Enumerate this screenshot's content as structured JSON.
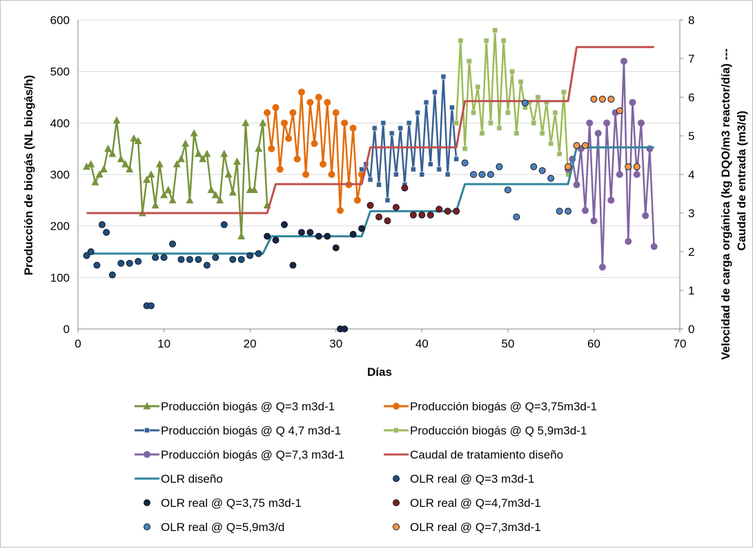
{
  "chart_data": {
    "type": "line",
    "xlabel": "Días",
    "ylabel_left": "Producción de biogás (NL biogás/h)",
    "ylabel_right_line1": "Velocidad de carga orgánica (kg DQO/m3 reactor/día) ---",
    "ylabel_right_line2": "Caudal de entrada (m3/d)",
    "xlim": [
      0,
      70
    ],
    "xticks": [
      "0",
      "10",
      "20",
      "30",
      "40",
      "50",
      "60",
      "70"
    ],
    "ylim_left": [
      0,
      600
    ],
    "yticks_left": [
      "0",
      "100",
      "200",
      "300",
      "400",
      "500",
      "600"
    ],
    "ylim_right": [
      0,
      8
    ],
    "yticks_right": [
      "0",
      "1",
      "2",
      "3",
      "4",
      "5",
      "6",
      "7",
      "8"
    ],
    "grid": "horizontal",
    "legend_position": "bottom",
    "series": [
      {
        "name": "Producción biogás @ Q=3 m3d-1",
        "axis": "left",
        "color": "#77933c",
        "marker": "triangle",
        "line": true,
        "x": [
          1,
          1.5,
          2,
          2.5,
          3,
          3.5,
          4,
          4.5,
          5,
          5.5,
          6,
          6.5,
          7,
          7.5,
          8,
          8.5,
          9,
          9.5,
          10,
          10.5,
          11,
          11.5,
          12,
          12.5,
          13,
          13.5,
          14,
          14.5,
          15,
          15.5,
          16,
          16.5,
          17,
          17.5,
          18,
          18.5,
          19,
          19.5,
          20,
          20.5,
          21,
          21.5,
          22
        ],
        "y": [
          315,
          320,
          285,
          300,
          310,
          350,
          340,
          405,
          330,
          320,
          310,
          370,
          365,
          225,
          290,
          300,
          240,
          320,
          260,
          270,
          250,
          320,
          330,
          360,
          250,
          380,
          340,
          330,
          340,
          270,
          260,
          250,
          340,
          300,
          265,
          325,
          180,
          400,
          270,
          270,
          350,
          400,
          240
        ]
      },
      {
        "name": "Producción biogás @ Q=3,75m3d-1",
        "axis": "left",
        "color": "#e46c0a",
        "marker": "circle",
        "line": true,
        "x": [
          22,
          22.5,
          23,
          23.5,
          24,
          24.5,
          25,
          25.5,
          26,
          26.5,
          27,
          27.5,
          28,
          28.5,
          29,
          29.5,
          30,
          30.5,
          31,
          31.5,
          32,
          32.5,
          33
        ],
        "y": [
          420,
          350,
          430,
          310,
          400,
          370,
          420,
          330,
          460,
          300,
          440,
          360,
          450,
          320,
          440,
          300,
          420,
          230,
          400,
          280,
          390,
          250,
          300
        ]
      },
      {
        "name": "Producción biogás @ Q 4,7 m3d-1",
        "axis": "left",
        "color": "#376092",
        "marker": "square",
        "line": true,
        "x": [
          33,
          33.5,
          34,
          34.5,
          35,
          35.5,
          36,
          36.5,
          37,
          37.5,
          38,
          38.5,
          39,
          39.5,
          40,
          40.5,
          41,
          41.5,
          42,
          42.5,
          43,
          43.5,
          44
        ],
        "y": [
          310,
          320,
          290,
          390,
          280,
          400,
          250,
          380,
          300,
          390,
          280,
          400,
          310,
          420,
          300,
          440,
          320,
          460,
          310,
          490,
          300,
          430,
          330
        ]
      },
      {
        "name": "Producción biogás @ Q 5,9m3d-1",
        "axis": "left",
        "color": "#9bbb59",
        "marker": "square",
        "line": true,
        "x": [
          44,
          44.5,
          45,
          45.5,
          46,
          46.5,
          47,
          47.5,
          48,
          48.5,
          49,
          49.5,
          50,
          50.5,
          51,
          51.5,
          52,
          52.5,
          53,
          53.5,
          54,
          54.5,
          55,
          55.5,
          56,
          56.5,
          57
        ],
        "y": [
          400,
          560,
          350,
          520,
          420,
          470,
          380,
          560,
          400,
          580,
          390,
          560,
          420,
          500,
          380,
          480,
          430,
          440,
          400,
          450,
          380,
          440,
          360,
          420,
          340,
          460,
          300
        ]
      },
      {
        "name": "Producción biogás @ Q=7,3 m3d-1",
        "axis": "left",
        "color": "#8064a2",
        "marker": "circle",
        "line": true,
        "x": [
          57,
          57.5,
          58,
          58.5,
          59,
          59.5,
          60,
          60.5,
          61,
          61.5,
          62,
          62.5,
          63,
          63.5,
          64,
          64.5,
          65,
          65.5,
          66,
          66.5,
          67
        ],
        "y": [
          310,
          330,
          280,
          350,
          230,
          400,
          210,
          380,
          120,
          400,
          250,
          420,
          300,
          520,
          170,
          440,
          300,
          400,
          220,
          350,
          160
        ]
      },
      {
        "name": "Caudal de tratamiento diseño",
        "axis": "right",
        "color": "#c0504d",
        "marker": "none",
        "line": true,
        "x": [
          1,
          22,
          23,
          33,
          34,
          44,
          45,
          57,
          58,
          67
        ],
        "y": [
          3,
          3,
          3.75,
          3.75,
          4.7,
          4.7,
          5.9,
          5.9,
          7.3,
          7.3
        ]
      },
      {
        "name": "OLR diseño",
        "axis": "right",
        "color": "#31859c",
        "marker": "none",
        "line": true,
        "x": [
          1,
          21.5,
          22.5,
          33,
          34,
          44,
          45,
          57,
          58,
          67
        ],
        "y": [
          1.95,
          1.95,
          2.4,
          2.4,
          3.05,
          3.05,
          3.75,
          3.75,
          4.7,
          4.7
        ]
      },
      {
        "name": "OLR real @ Q=3 m3d-1",
        "axis": "right",
        "color": "#1f4e79",
        "marker": "dot",
        "line": false,
        "x": [
          1,
          1.5,
          2.2,
          2.8,
          3.3,
          4,
          5,
          6,
          7,
          8,
          8.5,
          9,
          10,
          11,
          12,
          13,
          14,
          15,
          16,
          17,
          18,
          19,
          20,
          21
        ],
        "y": [
          1.9,
          2.0,
          1.65,
          2.7,
          2.5,
          1.4,
          1.7,
          1.7,
          1.75,
          0.6,
          0.6,
          1.85,
          1.85,
          2.2,
          1.8,
          1.8,
          1.8,
          1.65,
          1.85,
          2.7,
          1.8,
          1.8,
          1.9,
          1.95
        ]
      },
      {
        "name": "OLR real @ Q=3,75 m3d-1",
        "axis": "right",
        "color": "#17253f",
        "marker": "dot",
        "line": false,
        "x": [
          22,
          23,
          24,
          25,
          26,
          27,
          28,
          29,
          30,
          30.5,
          31,
          32,
          33
        ],
        "y": [
          2.4,
          2.3,
          2.7,
          1.65,
          2.5,
          2.5,
          2.4,
          2.4,
          2.1,
          0,
          0,
          2.45,
          2.6
        ]
      },
      {
        "name": "OLR real @ Q=4,7m3d-1",
        "axis": "right",
        "color": "#7b1f1f",
        "marker": "dot",
        "line": false,
        "x": [
          34,
          35,
          36,
          37,
          38,
          39,
          40,
          41,
          42,
          43,
          44
        ],
        "y": [
          3.2,
          2.9,
          2.8,
          3.15,
          3.65,
          2.95,
          2.95,
          2.95,
          3.1,
          3.05,
          3.05
        ]
      },
      {
        "name": "OLR real @ Q=5,9m3/d",
        "axis": "right",
        "color": "#4f81bd",
        "marker": "dot",
        "line": false,
        "x": [
          45,
          46,
          47,
          48,
          49,
          50,
          51,
          52,
          53,
          54,
          55,
          56,
          57
        ],
        "y": [
          4.3,
          4.0,
          4.0,
          4.0,
          4.2,
          3.6,
          2.9,
          5.85,
          4.2,
          4.1,
          3.9,
          3.05,
          3.05
        ]
      },
      {
        "name": "OLR real @ Q=7,3m3d-1",
        "axis": "right",
        "color": "#f79646",
        "marker": "dot",
        "line": false,
        "x": [
          57,
          58,
          59,
          60,
          61,
          62,
          63,
          64,
          65
        ],
        "y": [
          4.2,
          4.75,
          4.75,
          5.95,
          5.95,
          5.95,
          5.65,
          4.2,
          4.2
        ]
      }
    ]
  }
}
